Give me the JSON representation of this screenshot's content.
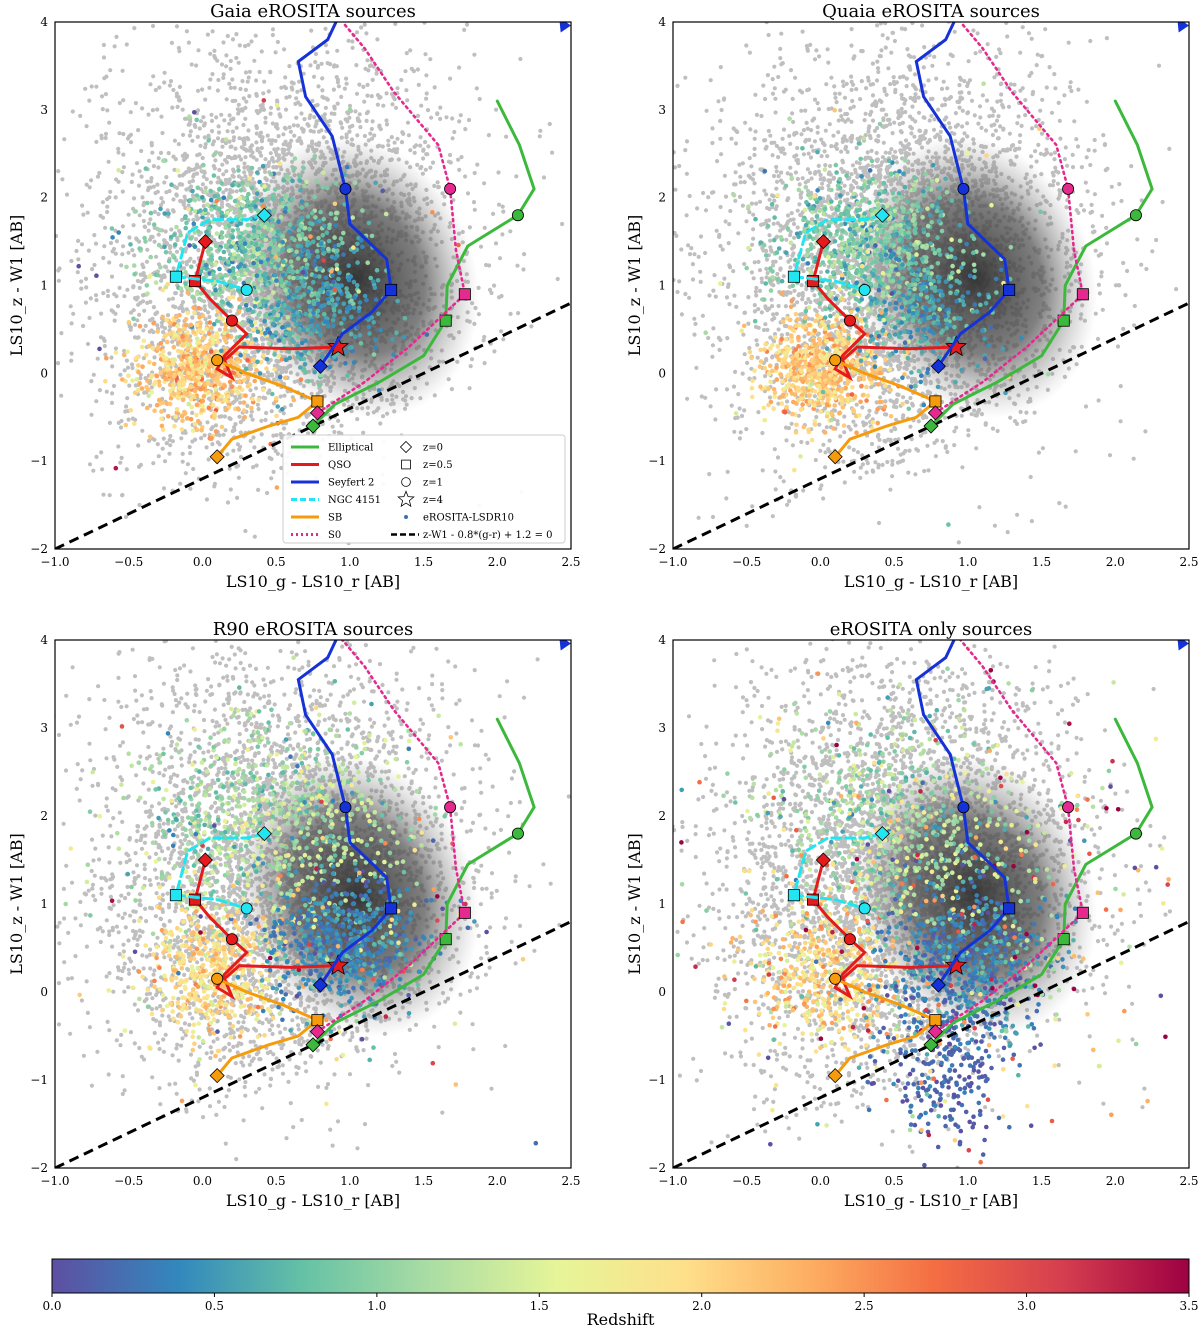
{
  "chart_data": {
    "type": "scatter",
    "xlabel": "LS10_g - LS10_r [AB]",
    "ylabel": "LS10_z - W1 [AB]",
    "xlim": [
      -1.0,
      2.5
    ],
    "ylim": [
      -2,
      4
    ],
    "x_ticks": [
      "-1.0",
      "-0.5",
      "0.0",
      "0.5",
      "1.0",
      "1.5",
      "2.0",
      "2.5"
    ],
    "y_ticks": [
      "-2",
      "-1",
      "0",
      "1",
      "2",
      "3",
      "4"
    ],
    "colorbar": {
      "label": "Redshift",
      "range": [
        0.0,
        3.5
      ],
      "ticks": [
        "0.0",
        "0.5",
        "1.0",
        "1.5",
        "2.0",
        "2.5",
        "3.0",
        "3.5"
      ],
      "colormap": "Spectral_r",
      "stops": [
        "#5e4fa2",
        "#3288bd",
        "#66c2a5",
        "#abdda4",
        "#e6f598",
        "#fee08b",
        "#fdae61",
        "#f46d43",
        "#d53e4f",
        "#9e0142"
      ]
    },
    "panels": [
      {
        "title": "Gaia eROSITA sources",
        "population": "gaia",
        "show_legend": true
      },
      {
        "title": "Quaia eROSITA sources",
        "population": "quaia",
        "show_legend": false
      },
      {
        "title": "R90 eROSITA sources",
        "population": "r90",
        "show_legend": false
      },
      {
        "title": "eROSITA only sources",
        "population": "erosita_only",
        "show_legend": false
      }
    ],
    "selection_line": {
      "label": "z-W1 - 0.8*(g-r) + 1.2 = 0",
      "slope": 0.8,
      "intercept": -1.2,
      "color": "#000000"
    },
    "background": {
      "label": "eROSITA-LSDR10",
      "color": "#bfbfbf"
    },
    "redshift_markers": [
      {
        "label": "z=0",
        "shape": "diamond"
      },
      {
        "label": "z=0.5",
        "shape": "square"
      },
      {
        "label": "z=1",
        "shape": "circle"
      },
      {
        "label": "z=4",
        "shape": "star"
      }
    ],
    "tracks": [
      {
        "name": "Elliptical",
        "color": "#3cb93c",
        "dash": "solid",
        "points": [
          [
            0.75,
            -0.6
          ],
          [
            0.9,
            -0.35
          ],
          [
            1.2,
            -0.1
          ],
          [
            1.5,
            0.2
          ],
          [
            1.65,
            0.6
          ],
          [
            1.66,
            1.0
          ],
          [
            1.8,
            1.45
          ],
          [
            2.14,
            1.8
          ],
          [
            2.25,
            2.1
          ],
          [
            2.15,
            2.6
          ],
          [
            2.0,
            3.1
          ]
        ],
        "markers": [
          {
            "z": "0",
            "x": 0.75,
            "y": -0.6
          },
          {
            "z": "0.5",
            "x": 1.65,
            "y": 0.6
          },
          {
            "z": "1",
            "x": 2.14,
            "y": 1.8
          }
        ]
      },
      {
        "name": "QSO",
        "color": "#e41a1c",
        "dash": "solid",
        "points": [
          [
            0.02,
            1.5
          ],
          [
            -0.05,
            1.05
          ],
          [
            0.05,
            0.85
          ],
          [
            0.2,
            0.6
          ],
          [
            0.3,
            0.45
          ],
          [
            0.15,
            0.2
          ],
          [
            0.1,
            0.05
          ],
          [
            0.2,
            -0.05
          ],
          [
            0.15,
            0.15
          ],
          [
            0.25,
            0.3
          ],
          [
            0.6,
            0.28
          ],
          [
            0.92,
            0.3
          ]
        ],
        "markers": [
          {
            "z": "0",
            "x": 0.02,
            "y": 1.5
          },
          {
            "z": "0.5",
            "x": -0.05,
            "y": 1.05
          },
          {
            "z": "1",
            "x": 0.2,
            "y": 0.6
          },
          {
            "z": "4",
            "x": 0.92,
            "y": 0.3
          }
        ]
      },
      {
        "name": "Seyfert 2",
        "color": "#1432d8",
        "dash": "solid",
        "points": [
          [
            0.8,
            0.08
          ],
          [
            0.95,
            0.45
          ],
          [
            1.15,
            0.7
          ],
          [
            1.28,
            0.95
          ],
          [
            1.25,
            1.3
          ],
          [
            1.0,
            1.7
          ],
          [
            0.97,
            2.1
          ],
          [
            0.88,
            2.7
          ],
          [
            0.7,
            3.15
          ],
          [
            0.65,
            3.55
          ],
          [
            0.85,
            3.8
          ],
          [
            0.92,
            4.05
          ]
        ],
        "markers": [
          {
            "z": "0",
            "x": 0.8,
            "y": 0.08
          },
          {
            "z": "0.5",
            "x": 1.28,
            "y": 0.95
          },
          {
            "z": "1",
            "x": 0.97,
            "y": 2.1
          }
        ]
      },
      {
        "name": "NGC 4151",
        "color": "#22e5f2",
        "dash": "dashed",
        "points": [
          [
            0.42,
            1.8
          ],
          [
            0.3,
            1.75
          ],
          [
            0.05,
            1.75
          ],
          [
            -0.1,
            1.6
          ],
          [
            -0.18,
            1.1
          ],
          [
            0.1,
            1.05
          ],
          [
            0.3,
            0.95
          ]
        ],
        "markers": [
          {
            "z": "0",
            "x": 0.42,
            "y": 1.8
          },
          {
            "z": "0.5",
            "x": -0.18,
            "y": 1.1
          },
          {
            "z": "1",
            "x": 0.3,
            "y": 0.95
          }
        ]
      },
      {
        "name": "SB",
        "color": "#f59b0c",
        "dash": "solid",
        "points": [
          [
            0.1,
            -0.95
          ],
          [
            0.2,
            -0.75
          ],
          [
            0.45,
            -0.6
          ],
          [
            0.65,
            -0.5
          ],
          [
            0.78,
            -0.32
          ],
          [
            0.55,
            -0.15
          ],
          [
            0.3,
            0.0
          ],
          [
            0.1,
            0.15
          ]
        ],
        "markers": [
          {
            "z": "0",
            "x": 0.1,
            "y": -0.95
          },
          {
            "z": "0.5",
            "x": 0.78,
            "y": -0.32
          },
          {
            "z": "1",
            "x": 0.1,
            "y": 0.15
          }
        ]
      },
      {
        "name": "S0",
        "color": "#e5298e",
        "dash": "dotted",
        "points": [
          [
            0.78,
            -0.45
          ],
          [
            1.1,
            -0.1
          ],
          [
            1.4,
            0.3
          ],
          [
            1.78,
            0.9
          ],
          [
            1.72,
            1.4
          ],
          [
            1.68,
            2.1
          ],
          [
            1.6,
            2.6
          ],
          [
            1.3,
            3.2
          ],
          [
            1.1,
            3.7
          ],
          [
            0.95,
            4.0
          ]
        ],
        "markers": [
          {
            "z": "0",
            "x": 0.78,
            "y": -0.45
          },
          {
            "z": "0.5",
            "x": 1.78,
            "y": 0.9
          },
          {
            "z": "1",
            "x": 1.68,
            "y": 2.1
          }
        ]
      }
    ]
  }
}
